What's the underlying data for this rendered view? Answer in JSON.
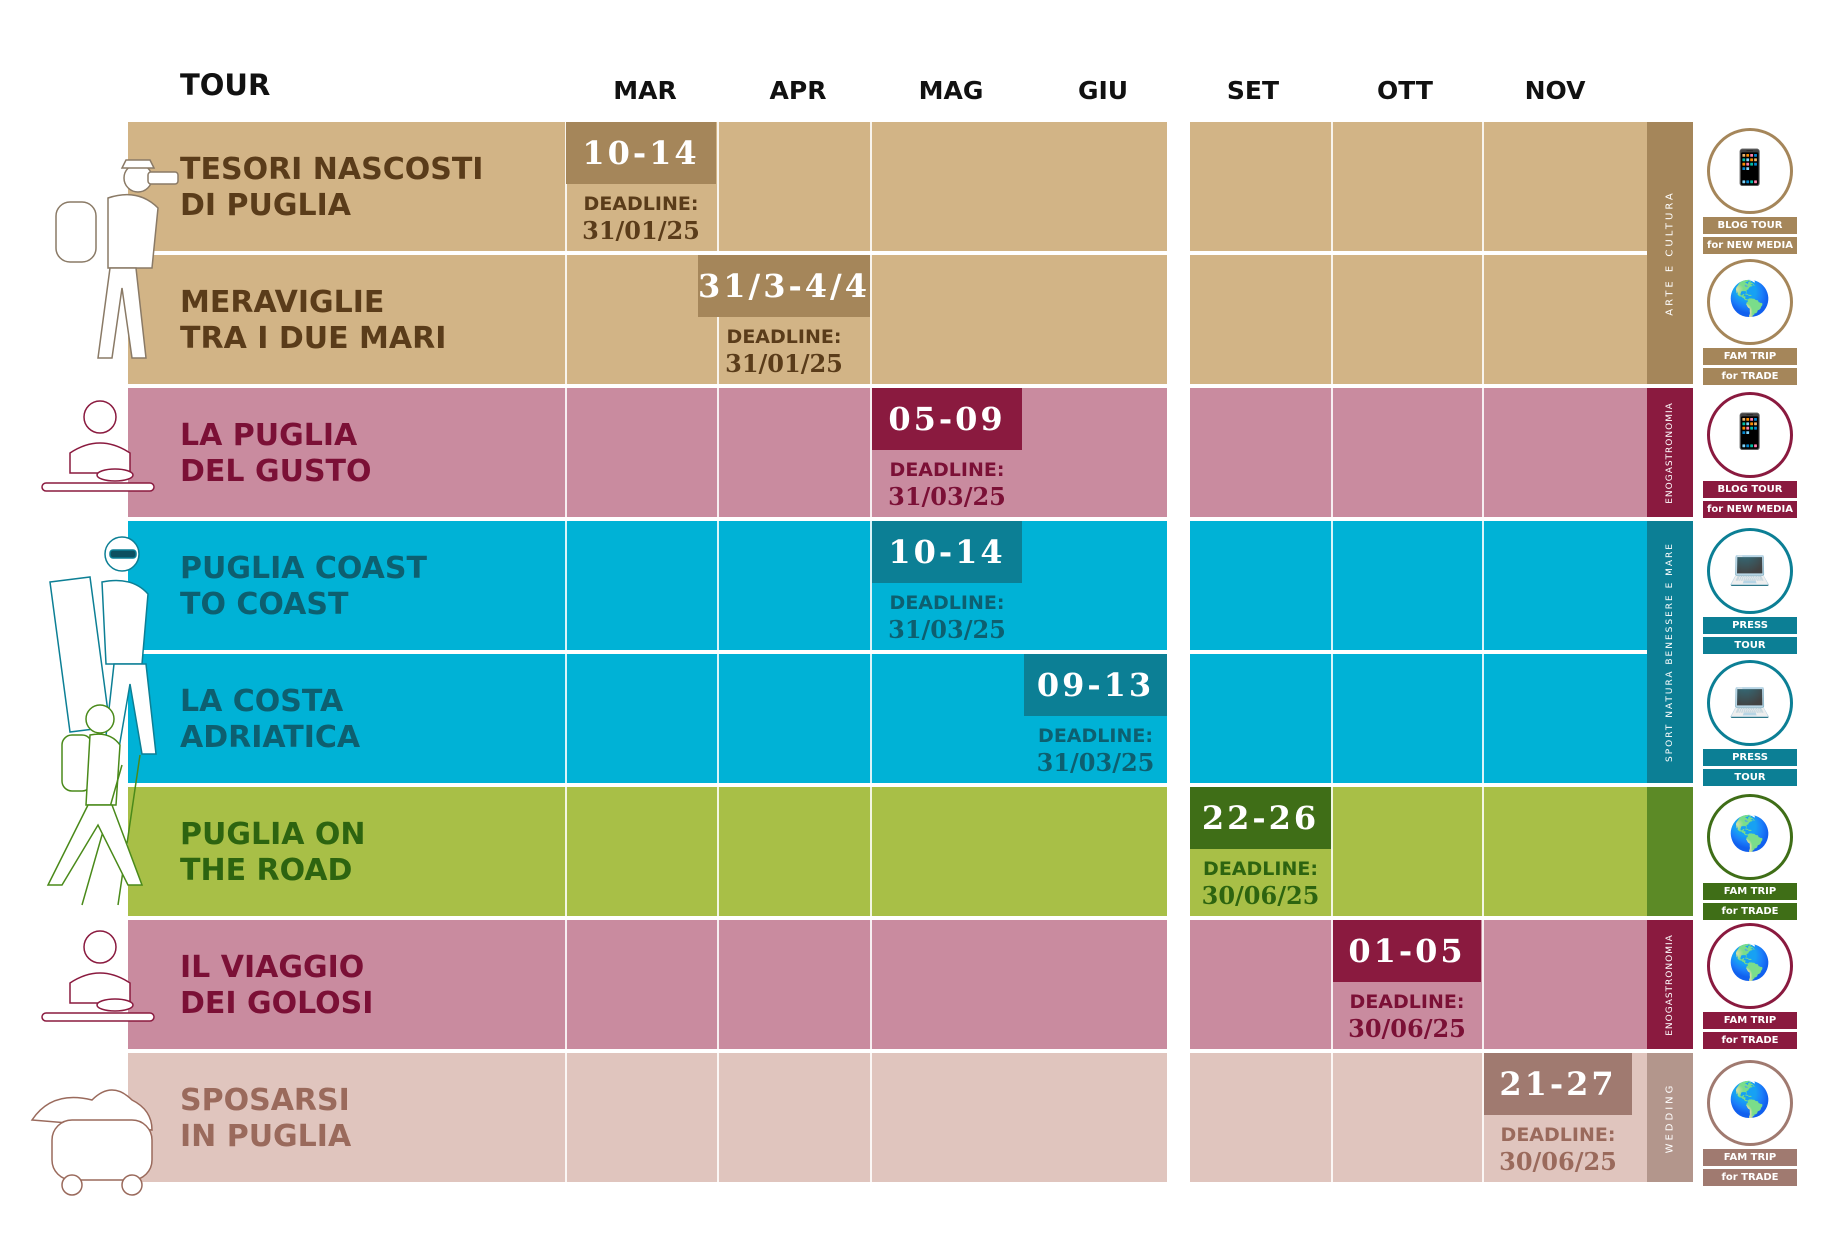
{
  "header": {
    "tour_label": "TOUR",
    "months": [
      "MAR",
      "APR",
      "MAG",
      "GIU",
      "SET",
      "OTT",
      "NOV"
    ]
  },
  "deadline_label": "DEADLINE:",
  "tours": [
    {
      "title_1": "TESORI NASCOSTI",
      "title_2": "DI PUGLIA",
      "dates": "10-14",
      "deadline": "31/01/25"
    },
    {
      "title_1": "MERAVIGLIE",
      "title_2": "TRA I DUE MARI",
      "dates": "31/3-4/4",
      "deadline": "31/01/25"
    },
    {
      "title_1": "LA PUGLIA",
      "title_2": "DEL GUSTO",
      "dates": "05-09",
      "deadline": "31/03/25"
    },
    {
      "title_1": "PUGLIA COAST",
      "title_2": "TO COAST",
      "dates": "10-14",
      "deadline": "31/03/25"
    },
    {
      "title_1": "LA COSTA",
      "title_2": "ADRIATICA",
      "dates": "09-13",
      "deadline": "31/03/25"
    },
    {
      "title_1": "PUGLIA ON",
      "title_2": "THE ROAD",
      "dates": "22-26",
      "deadline": "30/06/25"
    },
    {
      "title_1": "IL VIAGGIO",
      "title_2": "DEI GOLOSI",
      "dates": "01-05",
      "deadline": "30/06/25"
    },
    {
      "title_1": "SPOSARSI",
      "title_2": "IN PUGLIA",
      "dates": "21-27",
      "deadline": "30/06/25"
    }
  ],
  "categories": [
    "ARTE E CULTURA",
    "ENOGASTRONOMIA",
    "SPORT NATURA BENESSERE E MARE",
    "ENOGASTRONOMIA",
    "WEDDING"
  ],
  "badges": [
    {
      "line_1": "BLOG TOUR",
      "line_2": "for NEW MEDIA",
      "icon": "smartphone-blogger-icon"
    },
    {
      "line_1": "FAM TRIP",
      "line_2": "for TRADE",
      "icon": "globe-suitcase-icon"
    },
    {
      "line_1": "BLOG TOUR",
      "line_2": "for NEW MEDIA",
      "icon": "smartphone-blogger-icon"
    },
    {
      "line_1": "PRESS",
      "line_2": "TOUR",
      "icon": "laptop-person-icon"
    },
    {
      "line_1": "PRESS",
      "line_2": "TOUR",
      "icon": "laptop-person-icon"
    },
    {
      "line_1": "FAM TRIP",
      "line_2": "for TRADE",
      "icon": "globe-suitcase-icon"
    },
    {
      "line_1": "FAM TRIP",
      "line_2": "for TRADE",
      "icon": "globe-suitcase-icon"
    },
    {
      "line_1": "FAM TRIP",
      "line_2": "for TRADE",
      "icon": "globe-suitcase-icon"
    }
  ],
  "colors": {
    "arte_band": "#d2b486",
    "arte_dark": "#a5865a",
    "arte_text": "#5a3c1a",
    "gusto_band": "#c98b9f",
    "gusto_dark": "#8a1a3f",
    "gusto_text": "#7b1036",
    "mare_band": "#00b2d6",
    "mare_dark": "#0c7f95",
    "mare_text": "#0d5f70",
    "road_band": "#a8bf47",
    "road_dark": "#3f6e17",
    "road_text": "#2d6410",
    "wedding_band": "#e0c5be",
    "wedding_dark": "#a07a70",
    "wedding_text": "#9a6a5c"
  }
}
